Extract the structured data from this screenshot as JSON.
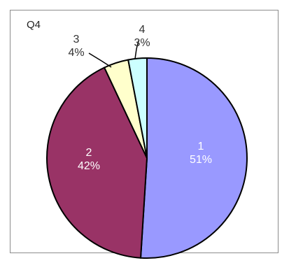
{
  "chart_data": {
    "type": "pie",
    "title": "Q4",
    "slices": [
      {
        "label": "1",
        "value": 51,
        "value_label": "51%",
        "color": "#9999ff",
        "label_color": "#ffffff"
      },
      {
        "label": "2",
        "value": 42,
        "value_label": "42%",
        "color": "#993366",
        "label_color": "#ffffff"
      },
      {
        "label": "3",
        "value": 4,
        "value_label": "4%",
        "color": "#ffffcc",
        "label_color": "#333333"
      },
      {
        "label": "4",
        "value": 3,
        "value_label": "3%",
        "color": "#ccffff",
        "label_color": "#333333"
      }
    ],
    "start_angle_deg": 0,
    "direction": "clockwise",
    "edge_color": "#000000",
    "leader_lines": true,
    "legend": "none"
  }
}
